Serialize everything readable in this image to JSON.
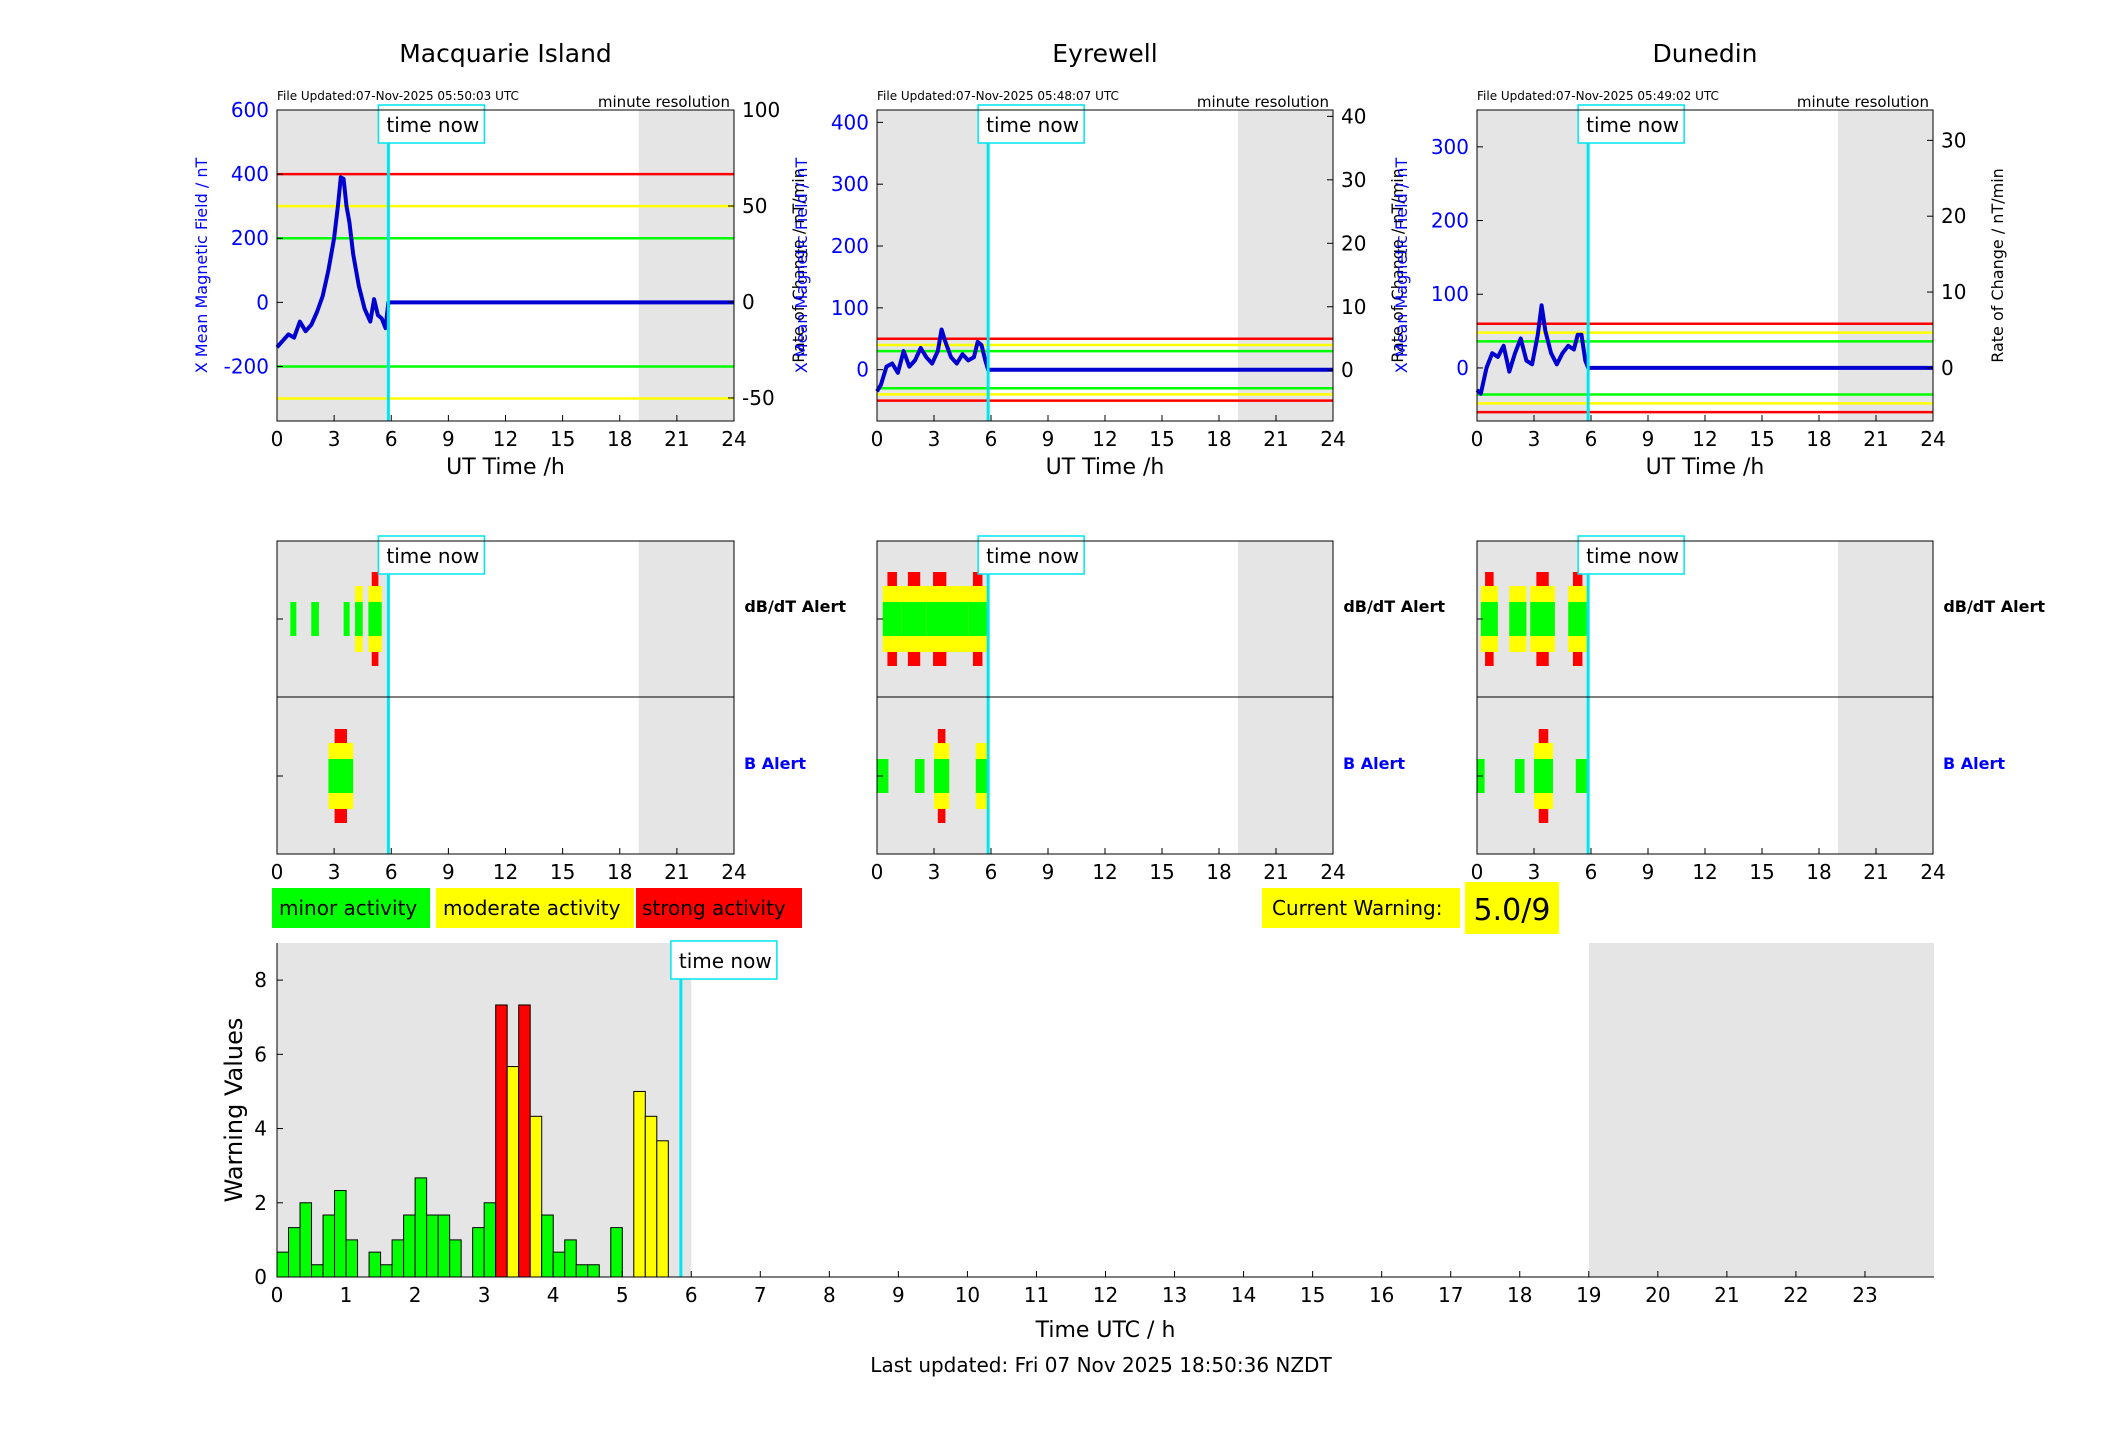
{
  "footer": "Last updated: Fri 07 Nov 2025 18:50:36 NZDT",
  "time_now_label": "time now",
  "common": {
    "xlabel_top": "UT Time /h",
    "resolution": "minute resolution",
    "ylabel_left": "X Mean Magnetic Field / nT",
    "ylabel_right": "Rate of Change / nT/min",
    "alert_dbdt": "dB/dT Alert",
    "alert_b": "B Alert",
    "x_ticks": [
      0,
      3,
      6,
      9,
      12,
      15,
      18,
      21,
      24
    ],
    "colors": {
      "left_axis": "#0000ff",
      "time_now": "#00e5ee",
      "shade": "#e5e5e5",
      "minor": "#00ff00",
      "moderate": "#ffff00",
      "strong": "#ff0000"
    }
  },
  "legend": {
    "minor": "minor activity",
    "moderate": "moderate activity",
    "strong": "strong activity"
  },
  "warning": {
    "label": "Current Warning:",
    "value": "5.0/9"
  },
  "chart_data": [
    {
      "type": "line",
      "title": "Macquarie Island",
      "file_updated": "File Updated:07-Nov-2025 05:50:03 UTC",
      "xlabel": "UT Time /h",
      "ylabel": "X Mean Magnetic Field / nT",
      "y2label": "Rate of Change / nT/min",
      "xlim": [
        0,
        24
      ],
      "ylim": [
        -370,
        600
      ],
      "y2lim": [
        -62,
        100
      ],
      "y_ticks": [
        -200,
        0,
        200,
        400,
        600
      ],
      "y2_ticks": [
        -50,
        0,
        50,
        100
      ],
      "thresholds": [
        {
          "value": 400,
          "color": "#ff0000"
        },
        {
          "value": 300,
          "color": "#ffff00"
        },
        {
          "value": 200,
          "color": "#00ff00"
        },
        {
          "value": -200,
          "color": "#00ff00"
        },
        {
          "value": -300,
          "color": "#ffff00"
        }
      ],
      "time_now": 5.85,
      "shade_ranges": [
        [
          0,
          5.85
        ],
        [
          19,
          24
        ]
      ],
      "series": [
        {
          "values_x": [
            0,
            0.3,
            0.6,
            0.9,
            1.2,
            1.5,
            1.8,
            2.1,
            2.4,
            2.7,
            3.0,
            3.2,
            3.35,
            3.5,
            3.65,
            3.8,
            4.0,
            4.3,
            4.6,
            4.9,
            5.1,
            5.3,
            5.5,
            5.7,
            5.85,
            24
          ],
          "values_y": [
            -140,
            -120,
            -100,
            -110,
            -60,
            -90,
            -70,
            -30,
            20,
            100,
            200,
            300,
            390,
            385,
            300,
            250,
            150,
            50,
            -20,
            -60,
            10,
            -40,
            -50,
            -80,
            0,
            0
          ]
        }
      ]
    },
    {
      "type": "line",
      "title": "Eyrewell",
      "file_updated": "File Updated:07-Nov-2025 05:48:07 UTC",
      "xlabel": "UT Time /h",
      "ylabel": "X Mean Magnetic Field / nT",
      "y2label": "Rate of Change / nT/min",
      "xlim": [
        0,
        24
      ],
      "ylim": [
        -83,
        420
      ],
      "y2lim": [
        -8,
        41
      ],
      "y_ticks": [
        0,
        100,
        200,
        300,
        400
      ],
      "y2_ticks": [
        0,
        10,
        20,
        30,
        40
      ],
      "thresholds": [
        {
          "value": 50,
          "color": "#ff0000"
        },
        {
          "value": 40,
          "color": "#ffff00"
        },
        {
          "value": 30,
          "color": "#00ff00"
        },
        {
          "value": -30,
          "color": "#00ff00"
        },
        {
          "value": -40,
          "color": "#ffff00"
        },
        {
          "value": -50,
          "color": "#ff0000"
        }
      ],
      "time_now": 5.85,
      "shade_ranges": [
        [
          0,
          5.85
        ],
        [
          19,
          24
        ]
      ],
      "series": [
        {
          "values_x": [
            0,
            0.2,
            0.5,
            0.8,
            1.1,
            1.4,
            1.7,
            2.0,
            2.3,
            2.6,
            2.9,
            3.2,
            3.4,
            3.6,
            3.9,
            4.2,
            4.5,
            4.8,
            5.1,
            5.3,
            5.5,
            5.7,
            5.85,
            24
          ],
          "values_y": [
            -35,
            -25,
            5,
            10,
            -5,
            30,
            5,
            15,
            35,
            20,
            10,
            30,
            65,
            45,
            20,
            10,
            25,
            15,
            20,
            45,
            40,
            15,
            0,
            0
          ]
        }
      ]
    },
    {
      "type": "line",
      "title": "Dunedin",
      "file_updated": "File Updated:07-Nov-2025 05:49:02 UTC",
      "xlabel": "UT Time /h",
      "ylabel": "X Mean Magnetic Field / nT",
      "y2label": "Rate of Change / nT/min",
      "xlim": [
        0,
        24
      ],
      "ylim": [
        -72,
        350
      ],
      "y2lim": [
        -7,
        34
      ],
      "y_ticks": [
        0,
        100,
        200,
        300
      ],
      "y2_ticks": [
        0,
        10,
        20,
        30
      ],
      "thresholds": [
        {
          "value": 60,
          "color": "#ff0000"
        },
        {
          "value": 48,
          "color": "#ffff00"
        },
        {
          "value": 36,
          "color": "#00ff00"
        },
        {
          "value": -36,
          "color": "#00ff00"
        },
        {
          "value": -48,
          "color": "#ffff00"
        },
        {
          "value": -60,
          "color": "#ff0000"
        }
      ],
      "time_now": 5.85,
      "shade_ranges": [
        [
          0,
          5.85
        ],
        [
          19,
          24
        ]
      ],
      "series": [
        {
          "values_x": [
            0,
            0.2,
            0.5,
            0.8,
            1.1,
            1.4,
            1.7,
            2.0,
            2.3,
            2.6,
            2.9,
            3.2,
            3.4,
            3.6,
            3.9,
            4.2,
            4.5,
            4.8,
            5.1,
            5.3,
            5.5,
            5.7,
            5.85,
            24
          ],
          "values_y": [
            -30,
            -35,
            0,
            20,
            15,
            30,
            -5,
            20,
            40,
            10,
            5,
            45,
            85,
            50,
            20,
            5,
            20,
            30,
            25,
            45,
            45,
            10,
            0,
            0
          ]
        }
      ]
    },
    {
      "type": "alert_timeline",
      "station": "Macquarie Island",
      "xlim": [
        0,
        24
      ],
      "time_now": 5.85,
      "shade_ranges": [
        [
          0,
          5.85
        ],
        [
          19,
          24
        ]
      ],
      "dbdt": [
        {
          "x0": 0.7,
          "x1": 1.0,
          "level": 1
        },
        {
          "x0": 1.8,
          "x1": 2.2,
          "level": 1
        },
        {
          "x0": 3.5,
          "x1": 3.8,
          "level": 1
        },
        {
          "x0": 4.1,
          "x1": 4.5,
          "level": 2
        },
        {
          "x0": 4.8,
          "x1": 5.5,
          "level": 3
        }
      ],
      "b": [
        {
          "x0": 2.7,
          "x1": 4.0,
          "level": 3
        }
      ]
    },
    {
      "type": "alert_timeline",
      "station": "Eyrewell",
      "xlim": [
        0,
        24
      ],
      "time_now": 5.85,
      "shade_ranges": [
        [
          0,
          5.85
        ],
        [
          19,
          24
        ]
      ],
      "dbdt": [
        {
          "x0": 0.3,
          "x1": 1.3,
          "level": 3
        },
        {
          "x0": 1.3,
          "x1": 2.6,
          "level": 3
        },
        {
          "x0": 2.6,
          "x1": 4.0,
          "level": 3
        },
        {
          "x0": 4.0,
          "x1": 4.8,
          "level": 2
        },
        {
          "x0": 4.8,
          "x1": 5.8,
          "level": 3
        }
      ],
      "b": [
        {
          "x0": 0,
          "x1": 0.6,
          "level": 1
        },
        {
          "x0": 2.0,
          "x1": 2.5,
          "level": 1
        },
        {
          "x0": 3.0,
          "x1": 3.8,
          "level": 3
        },
        {
          "x0": 5.2,
          "x1": 5.8,
          "level": 2
        }
      ]
    },
    {
      "type": "alert_timeline",
      "station": "Dunedin",
      "xlim": [
        0,
        24
      ],
      "time_now": 5.85,
      "shade_ranges": [
        [
          0,
          5.85
        ],
        [
          19,
          24
        ]
      ],
      "dbdt": [
        {
          "x0": 0.2,
          "x1": 1.1,
          "level": 3
        },
        {
          "x0": 1.7,
          "x1": 2.6,
          "level": 2
        },
        {
          "x0": 2.8,
          "x1": 4.1,
          "level": 3
        },
        {
          "x0": 4.8,
          "x1": 5.8,
          "level": 3
        }
      ],
      "b": [
        {
          "x0": 0,
          "x1": 0.4,
          "level": 1
        },
        {
          "x0": 2.0,
          "x1": 2.5,
          "level": 1
        },
        {
          "x0": 3.0,
          "x1": 4.0,
          "level": 3
        },
        {
          "x0": 5.2,
          "x1": 5.8,
          "level": 1
        }
      ]
    },
    {
      "type": "bar",
      "title": "",
      "xlabel": "Time UTC / h",
      "ylabel": "Warning Values",
      "xlim": [
        0,
        24
      ],
      "ylim": [
        0,
        9
      ],
      "y_ticks": [
        0,
        2,
        4,
        6,
        8
      ],
      "x_ticks": [
        0,
        1,
        2,
        3,
        4,
        5,
        6,
        7,
        8,
        9,
        10,
        11,
        12,
        13,
        14,
        15,
        16,
        17,
        18,
        19,
        20,
        21,
        22,
        23
      ],
      "bar_width_hours": 0.1667,
      "time_now": 5.85,
      "shade_ranges": [
        [
          0,
          6
        ],
        [
          19,
          24
        ]
      ],
      "values": [
        0.67,
        1.33,
        2.0,
        0.33,
        1.67,
        2.33,
        1.0,
        0,
        0.67,
        0.33,
        1.0,
        1.67,
        2.67,
        1.67,
        1.67,
        1.0,
        0,
        1.33,
        2.0,
        7.33,
        5.67,
        7.33,
        4.33,
        1.67,
        0.67,
        1.0,
        0.33,
        0.33,
        0,
        1.33,
        0,
        5.0,
        4.33,
        3.67,
        0,
        0
      ],
      "levels": [
        1,
        1,
        1,
        1,
        1,
        1,
        1,
        0,
        1,
        1,
        1,
        1,
        1,
        1,
        1,
        1,
        0,
        1,
        1,
        3,
        2,
        3,
        2,
        1,
        1,
        1,
        1,
        1,
        0,
        1,
        0,
        2,
        2,
        2,
        0,
        0
      ]
    }
  ]
}
